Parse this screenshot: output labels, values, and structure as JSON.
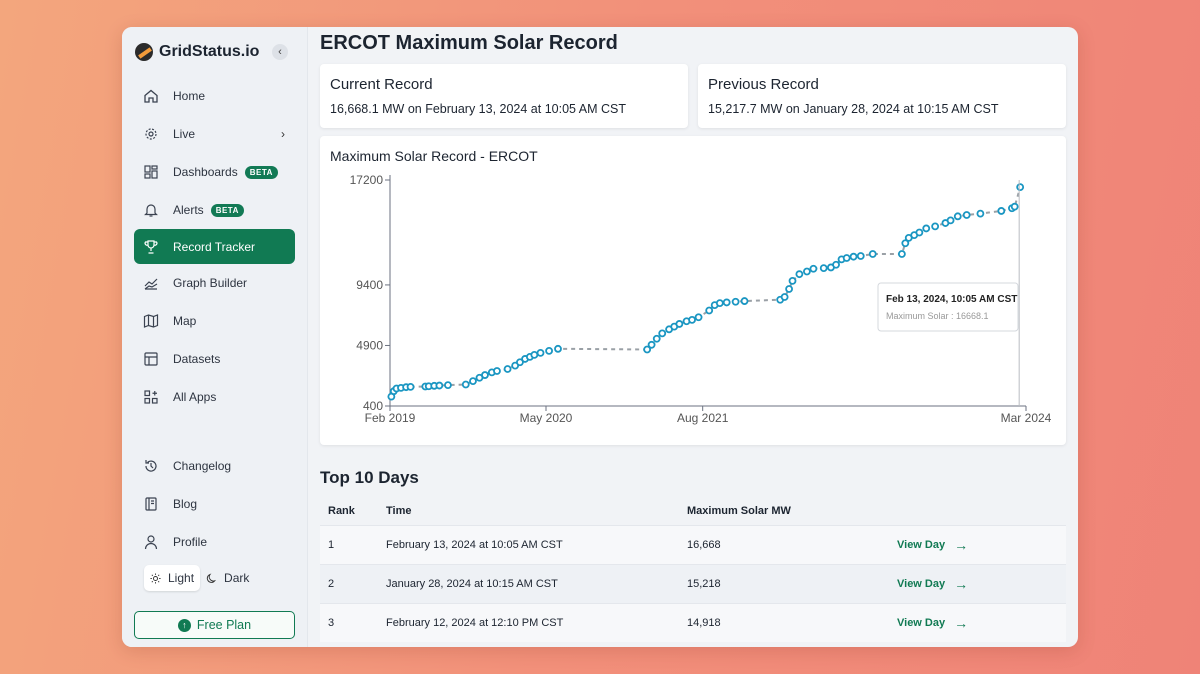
{
  "brand": {
    "name": "GridStatus.io"
  },
  "sidebar": {
    "collapse_icon": "chevron-left-icon",
    "items": [
      {
        "label": "Home",
        "icon": "home-icon"
      },
      {
        "label": "Live",
        "icon": "live-icon"
      },
      {
        "label": "Dashboards",
        "icon": "dashboards-icon",
        "badge": "BETA"
      },
      {
        "label": "Alerts",
        "icon": "bell-icon",
        "badge": "BETA"
      },
      {
        "label": "Record Tracker",
        "icon": "trophy-icon",
        "active": true
      },
      {
        "label": "Graph Builder",
        "icon": "chart-icon"
      },
      {
        "label": "Map",
        "icon": "map-icon"
      },
      {
        "label": "Datasets",
        "icon": "table-icon"
      },
      {
        "label": "All Apps",
        "icon": "apps-icon"
      }
    ],
    "bottom_items": [
      {
        "label": "Changelog",
        "icon": "changelog-icon"
      },
      {
        "label": "Blog",
        "icon": "book-icon"
      },
      {
        "label": "Profile",
        "icon": "user-icon"
      }
    ],
    "theme": {
      "light": "Light",
      "dark": "Dark"
    },
    "plan_button": "Free Plan"
  },
  "page": {
    "title": "ERCOT Maximum Solar Record",
    "current": {
      "title": "Current Record",
      "text": "16,668.1 MW on February 13, 2024 at 10:05 AM CST"
    },
    "previous": {
      "title": "Previous Record",
      "text": "15,217.7 MW on January 28, 2024 at 10:15 AM CST"
    }
  },
  "chart_data": {
    "type": "scatter",
    "title": "Maximum Solar Record - ERCOT",
    "y_ticks": [
      "17200",
      "9400",
      "4900",
      "400"
    ],
    "x_ticks": [
      "Feb 2019",
      "May 2020",
      "Aug 2021",
      "Mar 2024"
    ],
    "ylim": [
      400,
      17200
    ],
    "xlim": [
      "2019-02-01",
      "2024-03-01"
    ],
    "series": [
      {
        "name": "Maximum Solar",
        "x": [
          "2019-02-05",
          "2019-02-12",
          "2019-02-20",
          "2019-03-05",
          "2019-03-20",
          "2019-04-02",
          "2019-05-15",
          "2019-05-25",
          "2019-06-10",
          "2019-06-25",
          "2019-07-20",
          "2019-09-10",
          "2019-10-01",
          "2019-10-20",
          "2019-11-05",
          "2019-11-25",
          "2019-12-10",
          "2020-01-10",
          "2020-02-01",
          "2020-02-15",
          "2020-03-01",
          "2020-03-15",
          "2020-03-28",
          "2020-04-15",
          "2020-05-10",
          "2020-06-05",
          "2021-02-20",
          "2021-03-05",
          "2021-03-20",
          "2021-04-05",
          "2021-04-25",
          "2021-05-10",
          "2021-05-25",
          "2021-06-15",
          "2021-07-01",
          "2021-07-20",
          "2021-08-20",
          "2021-09-05",
          "2021-09-20",
          "2021-10-10",
          "2021-11-05",
          "2021-12-01",
          "2022-03-15",
          "2022-03-28",
          "2022-04-10",
          "2022-04-20",
          "2022-05-10",
          "2022-06-01",
          "2022-06-20",
          "2022-07-20",
          "2022-08-10",
          "2022-08-25",
          "2022-09-10",
          "2022-09-25",
          "2022-10-15",
          "2022-11-05",
          "2022-12-10",
          "2023-03-05",
          "2023-03-15",
          "2023-03-25",
          "2023-04-10",
          "2023-04-25",
          "2023-05-15",
          "2023-06-10",
          "2023-07-10",
          "2023-07-25",
          "2023-08-15",
          "2023-09-10",
          "2023-10-20",
          "2023-12-20",
          "2024-01-20",
          "2024-01-28",
          "2024-02-13"
        ],
        "y": [
          1100,
          1500,
          1700,
          1750,
          1800,
          1820,
          1850,
          1870,
          1900,
          1920,
          1950,
          2000,
          2250,
          2500,
          2700,
          2900,
          3000,
          3150,
          3400,
          3650,
          3900,
          4050,
          4200,
          4350,
          4500,
          4650,
          4600,
          4950,
          5400,
          5800,
          6100,
          6300,
          6500,
          6700,
          6800,
          7000,
          7500,
          7900,
          8050,
          8100,
          8150,
          8200,
          8300,
          8500,
          9100,
          9700,
          10200,
          10400,
          10600,
          10650,
          10700,
          10900,
          11300,
          11400,
          11500,
          11550,
          11700,
          11700,
          12500,
          12900,
          13100,
          13300,
          13600,
          13750,
          14000,
          14200,
          14500,
          14600,
          14700,
          14900,
          15100,
          15218,
          16668
        ]
      }
    ],
    "tooltip": {
      "title": "Feb 13, 2024, 10:05 AM CST",
      "text": "Maximum Solar : 16668.1"
    },
    "color": "#1a96c2"
  },
  "top": {
    "title": "Top 10 Days",
    "headers": [
      "Rank",
      "Time",
      "Maximum Solar MW"
    ],
    "rows": [
      {
        "rank": "1",
        "time": "February 13, 2024 at 10:05 AM CST",
        "mw": "16,668",
        "link": "View Day"
      },
      {
        "rank": "2",
        "time": "January 28, 2024 at 10:15 AM CST",
        "mw": "15,218",
        "link": "View Day"
      },
      {
        "rank": "3",
        "time": "February 12, 2024 at 12:10 PM CST",
        "mw": "14,918",
        "link": "View Day"
      }
    ]
  }
}
